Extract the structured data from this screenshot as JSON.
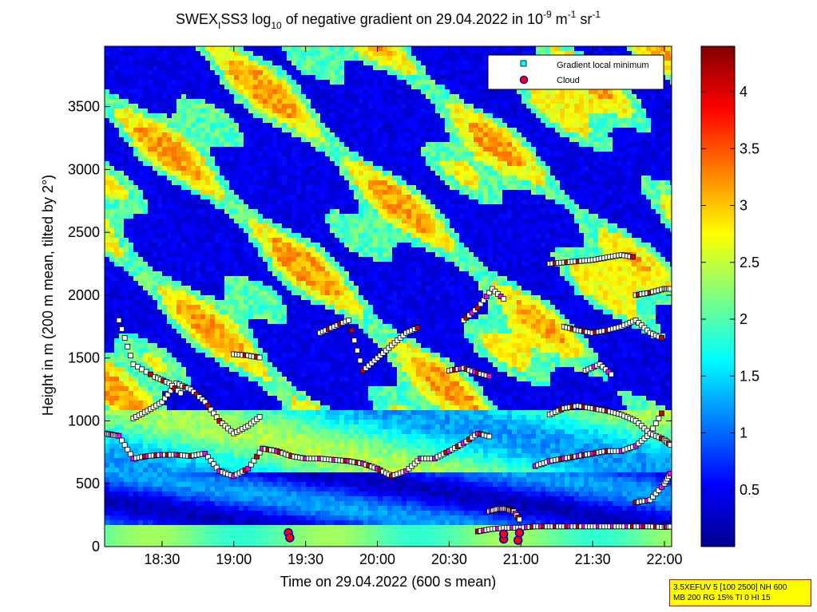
{
  "chart_data": {
    "type": "heatmap",
    "title": {
      "prefix": "SWEX",
      "sub": "I",
      "mid": "SS3 log",
      "sub2": "10",
      "rest": " of negative gradient on 29.04.2022 in 10",
      "exp1": "-9",
      "unit1": " m",
      "exp2": "-1",
      "unit2": " sr",
      "exp3": "-1"
    },
    "xlabel": "Time on 29.04.2022 (600 s mean)",
    "ylabel": "Height in m (200 m mean, tilted by 2°)",
    "x_ticks": [
      {
        "label": "18:30",
        "value": 18.5
      },
      {
        "label": "19:00",
        "value": 19.0
      },
      {
        "label": "19:30",
        "value": 19.5
      },
      {
        "label": "20:00",
        "value": 20.0
      },
      {
        "label": "20:30",
        "value": 20.5
      },
      {
        "label": "21:00",
        "value": 21.0
      },
      {
        "label": "21:30",
        "value": 21.5
      },
      {
        "label": "22:00",
        "value": 22.0
      }
    ],
    "xlim": [
      18.1,
      22.05
    ],
    "y_ticks": [
      0,
      500,
      1000,
      1500,
      2000,
      2500,
      3000,
      3500
    ],
    "ylim": [
      0,
      3980
    ],
    "colorbar": {
      "ticks": [
        0.5,
        1,
        1.5,
        2,
        2.5,
        3,
        3.5,
        4
      ],
      "tick_labels": [
        "0.5",
        "1",
        "1.5",
        "2",
        "2.5",
        "3",
        "3.5",
        "4"
      ],
      "range": [
        0,
        4.4
      ],
      "colormap": "jet"
    },
    "legend": {
      "placement": "top-right",
      "entries": [
        {
          "label": "Gradient local minimum",
          "marker": "square",
          "color": "#00ffff"
        },
        {
          "label": "Cloud",
          "marker": "circle",
          "color": "#ff0000"
        }
      ]
    },
    "gradient_minimum_tracks": [
      {
        "x": [
          18.1,
          18.15,
          18.2,
          18.3,
          18.4,
          18.5,
          18.6,
          18.7,
          18.8,
          18.9,
          19.0,
          19.1,
          19.2,
          19.3,
          19.4,
          19.5,
          19.6,
          19.7,
          19.8,
          19.9,
          20.0,
          20.1,
          20.2,
          20.3,
          20.4,
          20.5,
          20.6,
          20.7,
          20.8
        ],
        "y": [
          900,
          890,
          880,
          700,
          720,
          730,
          730,
          720,
          740,
          600,
          560,
          620,
          780,
          760,
          720,
          700,
          700,
          690,
          680,
          660,
          620,
          560,
          600,
          700,
          700,
          760,
          820,
          900,
          870
        ]
      },
      {
        "x": [
          18.3,
          18.4,
          18.5,
          18.6,
          18.7,
          18.8,
          18.9,
          19.0,
          19.1,
          19.2
        ],
        "y": [
          1020,
          1080,
          1150,
          1300,
          1250,
          1150,
          1000,
          900,
          960,
          1050
        ]
      },
      {
        "x": [
          18.2,
          18.3,
          18.45,
          18.55,
          18.65
        ],
        "y": [
          1800,
          1450,
          1350,
          1300,
          1200
        ]
      },
      {
        "x": [
          19.0,
          19.1,
          19.2
        ],
        "y": [
          1530,
          1520,
          1500
        ]
      },
      {
        "x": [
          19.6,
          19.7,
          19.8,
          19.9,
          20.0,
          20.1,
          20.2,
          20.3
        ],
        "y": [
          1700,
          1750,
          1800,
          1400,
          1500,
          1600,
          1700,
          1750
        ]
      },
      {
        "x": [
          20.5,
          20.6,
          20.7,
          20.8
        ],
        "y": [
          1400,
          1420,
          1380,
          1350
        ]
      },
      {
        "x": [
          20.6,
          20.7,
          20.8,
          20.9
        ],
        "y": [
          1800,
          1900,
          2050,
          1950
        ]
      },
      {
        "x": [
          20.7,
          20.8,
          20.9,
          21.0,
          21.1,
          21.2,
          21.3,
          21.4,
          21.5,
          21.6,
          21.7,
          21.8,
          21.9,
          22.0,
          22.05
        ],
        "y": [
          120,
          140,
          150,
          150,
          160,
          160,
          160,
          160,
          160,
          160,
          160,
          160,
          160,
          155,
          160
        ]
      },
      {
        "x": [
          20.78,
          20.85,
          20.9,
          20.95,
          21.0
        ],
        "y": [
          280,
          300,
          300,
          280,
          200
        ]
      },
      {
        "x": [
          21.1,
          21.2,
          21.3,
          21.4,
          21.5,
          21.6,
          21.7,
          21.8,
          21.9,
          22.0
        ],
        "y": [
          640,
          680,
          700,
          720,
          740,
          760,
          760,
          800,
          900,
          1100
        ]
      },
      {
        "x": [
          21.2,
          21.3,
          21.4,
          21.5,
          21.6,
          21.7,
          21.8,
          21.9,
          22.0,
          22.05
        ],
        "y": [
          1050,
          1100,
          1120,
          1100,
          1080,
          1050,
          1000,
          900,
          850,
          800
        ]
      },
      {
        "x": [
          21.3,
          21.4,
          21.5,
          21.6,
          21.7,
          21.8,
          21.9,
          22.0
        ],
        "y": [
          1750,
          1720,
          1700,
          1720,
          1750,
          1800,
          1700,
          1650
        ]
      },
      {
        "x": [
          21.2,
          21.3,
          21.4,
          21.5,
          21.6,
          21.7,
          21.8
        ],
        "y": [
          2250,
          2260,
          2270,
          2280,
          2300,
          2320,
          2300
        ]
      },
      {
        "x": [
          21.8,
          21.9,
          22.0,
          22.05
        ],
        "y": [
          2000,
          2020,
          2050,
          2050
        ]
      },
      {
        "x": [
          21.8,
          21.9,
          22.0,
          22.05
        ],
        "y": [
          350,
          370,
          500,
          600
        ]
      },
      {
        "x": [
          21.45,
          21.55,
          21.65
        ],
        "y": [
          1400,
          1450,
          1350
        ]
      }
    ],
    "cloud_points": [
      {
        "x": 19.38,
        "y": 110
      },
      {
        "x": 19.39,
        "y": 70
      },
      {
        "x": 20.88,
        "y": 60
      },
      {
        "x": 20.88,
        "y": 100
      },
      {
        "x": 20.98,
        "y": 50
      },
      {
        "x": 20.99,
        "y": 110
      }
    ]
  },
  "infobox": {
    "line1": "3.5XEFUV 5 [100 2500] NH 600",
    "line2": "MB 200 RG 15% TI 0 HI 15"
  }
}
